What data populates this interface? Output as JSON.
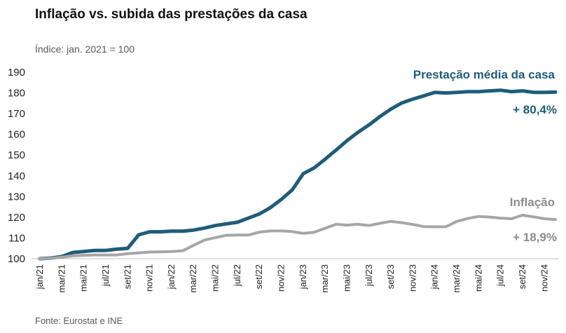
{
  "title": "Inflação vs. subida das prestações da casa",
  "subtitle": "Índice: jan. 2021 = 100",
  "source": "Fonte: Eurostat e INE",
  "chart_data": {
    "type": "line",
    "ylim": [
      100,
      190
    ],
    "yticks": [
      100,
      110,
      120,
      130,
      140,
      150,
      160,
      170,
      180,
      190
    ],
    "x": [
      "jan/21",
      "fev/21",
      "mar/21",
      "abr/21",
      "mai/21",
      "jun/21",
      "jul/21",
      "ago/21",
      "set/21",
      "out/21",
      "nov/21",
      "dez/21",
      "jan/22",
      "fev/22",
      "mar/22",
      "abr/22",
      "mai/22",
      "jun/22",
      "jul/22",
      "ago/22",
      "set/22",
      "out/22",
      "nov/22",
      "dez/22",
      "jan/23",
      "fev/23",
      "mar/23",
      "abr/23",
      "mai/23",
      "jun/23",
      "jul/23",
      "ago/23",
      "set/23",
      "out/23",
      "nov/23",
      "dez/23",
      "jan/24",
      "fev/24",
      "mar/24",
      "abr/24",
      "mai/24",
      "jun/24",
      "jul/24",
      "ago/24",
      "set/24",
      "out/24",
      "nov/24",
      "dez/24"
    ],
    "xtick_labels": [
      "jan/21",
      "mar/21",
      "mai/21",
      "jul/21",
      "set/21",
      "nov/21",
      "jan/22",
      "mar/22",
      "mai/22",
      "jul/22",
      "set/22",
      "nov/22",
      "jan/23",
      "mar/23",
      "mai/23",
      "jul/23",
      "set/23",
      "nov/23",
      "jan/24",
      "mar/24",
      "mai/24",
      "jul/24",
      "set/24",
      "nov/24"
    ],
    "series": [
      {
        "name": "Prestação média da casa",
        "color": "#1f5c7a",
        "end_label": "+ 80,4%",
        "values": [
          100.0,
          100.3,
          101.0,
          103.0,
          103.5,
          104.0,
          104.0,
          104.6,
          105.0,
          111.5,
          113.0,
          113.0,
          113.3,
          113.3,
          113.8,
          114.8,
          116.0,
          116.8,
          117.6,
          119.6,
          121.6,
          124.6,
          128.6,
          133.2,
          141.0,
          143.8,
          148.0,
          152.4,
          157.0,
          161.0,
          164.6,
          168.6,
          172.2,
          175.2,
          177.0,
          178.6,
          180.3,
          180.0,
          180.3,
          180.6,
          180.6,
          181.0,
          181.3,
          180.6,
          181.0,
          180.3,
          180.3,
          180.4
        ]
      },
      {
        "name": "Inflação",
        "color": "#a6a6a6",
        "end_label": "+ 18,9%",
        "values": [
          100.0,
          100.2,
          100.7,
          101.4,
          101.6,
          101.8,
          101.8,
          101.8,
          102.4,
          102.8,
          103.2,
          103.3,
          103.5,
          103.8,
          106.4,
          109.0,
          110.2,
          111.3,
          111.4,
          111.4,
          112.8,
          113.4,
          113.4,
          113.1,
          112.2,
          112.8,
          114.7,
          116.6,
          116.2,
          116.6,
          116.0,
          117.1,
          118.0,
          117.4,
          116.5,
          115.5,
          115.4,
          115.4,
          118.0,
          119.4,
          120.4,
          120.1,
          119.6,
          119.3,
          121.0,
          120.2,
          119.3,
          118.9
        ]
      }
    ]
  }
}
